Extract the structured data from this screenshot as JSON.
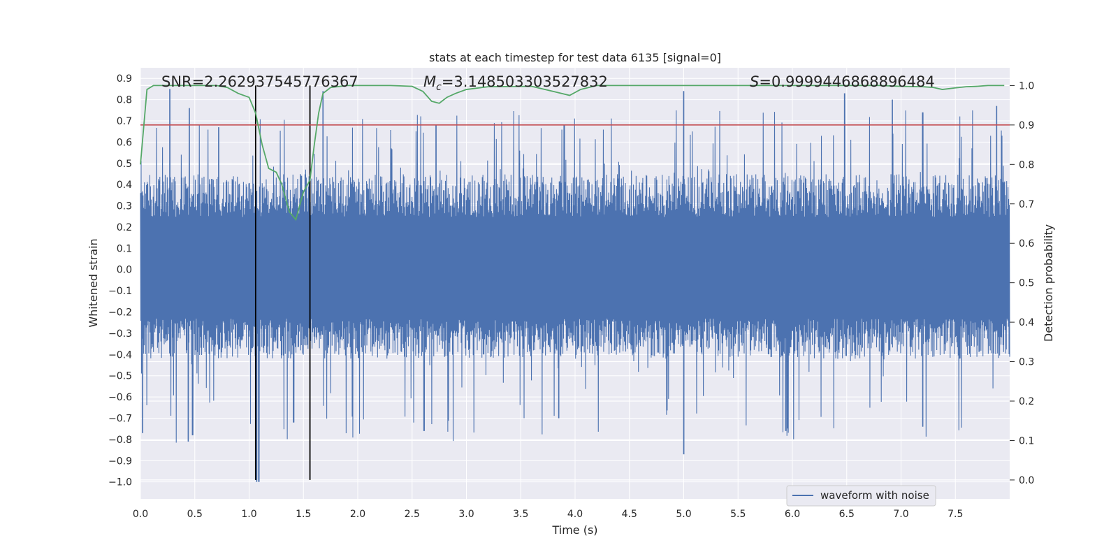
{
  "chart_data": {
    "type": "line",
    "title": "stats at each timestep for test data 6135 [signal=0]",
    "xlabel": "Time (s)",
    "ylabel_left": "Whitened strain",
    "ylabel_right": "Detection probability",
    "xlim": [
      0.0,
      8.0
    ],
    "ylim_left": [
      -1.08,
      0.95
    ],
    "ylim_right": [
      -0.048,
      1.045
    ],
    "x_ticks": [
      "0.0",
      "0.5",
      "1.0",
      "1.5",
      "2.0",
      "2.5",
      "3.0",
      "3.5",
      "4.0",
      "4.5",
      "5.0",
      "5.5",
      "6.0",
      "6.5",
      "7.0",
      "7.5"
    ],
    "y_left_ticks": [
      "0.9",
      "0.8",
      "0.7",
      "0.6",
      "0.5",
      "0.4",
      "0.3",
      "0.2",
      "0.1",
      "0.0",
      "−0.1",
      "−0.2",
      "−0.3",
      "−0.4",
      "−0.5",
      "−0.6",
      "−0.7",
      "−0.8",
      "−0.9",
      "−1.0"
    ],
    "y_right_ticks": [
      "0.0",
      "0.1",
      "0.2",
      "0.3",
      "0.4",
      "0.5",
      "0.6",
      "0.7",
      "0.8",
      "0.9",
      "1.0"
    ],
    "annotations": {
      "snr": "SNR=2.262937545776367",
      "mc_symbol": "M",
      "mc_sub": "c",
      "mc_value": "=3.148503303527832",
      "s_symbol": "S",
      "s_value": "=0.9999446868896484"
    },
    "threshold": {
      "axis": "right",
      "value": 0.9,
      "color": "#c44e52"
    },
    "vertical_lines": [
      1.06,
      1.56
    ],
    "legend": {
      "label": "waveform with noise",
      "placement": "lower-right"
    },
    "series": [
      {
        "name": "waveform with noise",
        "axis": "left",
        "color": "#4c72b0",
        "kind": "noise",
        "x_range": [
          0.0,
          8.0
        ],
        "typical_envelope": [
          -0.42,
          0.45
        ],
        "max": 0.85,
        "min": -1.0,
        "notable_peaks": [
          {
            "x": 0.27,
            "y": 0.85
          },
          {
            "x": 0.45,
            "y": 0.76
          },
          {
            "x": 0.72,
            "y": 0.67
          },
          {
            "x": 1.68,
            "y": 0.84
          },
          {
            "x": 2.72,
            "y": 0.68
          },
          {
            "x": 3.9,
            "y": 0.68
          },
          {
            "x": 5.0,
            "y": 0.84
          },
          {
            "x": 6.48,
            "y": 0.83
          },
          {
            "x": 6.92,
            "y": 0.8
          },
          {
            "x": 7.2,
            "y": 0.74
          },
          {
            "x": 7.88,
            "y": 0.77
          }
        ],
        "notable_troughs": [
          {
            "x": 0.02,
            "y": -0.77
          },
          {
            "x": 0.44,
            "y": -0.81
          },
          {
            "x": 0.48,
            "y": -0.78
          },
          {
            "x": 1.07,
            "y": -1.0
          },
          {
            "x": 1.09,
            "y": -1.0
          },
          {
            "x": 1.41,
            "y": -0.72
          },
          {
            "x": 2.61,
            "y": -0.76
          },
          {
            "x": 3.85,
            "y": -0.7
          },
          {
            "x": 5.0,
            "y": -0.87
          },
          {
            "x": 5.94,
            "y": -0.76
          },
          {
            "x": 7.2,
            "y": -0.74
          }
        ]
      },
      {
        "name": "Detection probability",
        "axis": "right",
        "color": "#55a868",
        "x": [
          0.0,
          0.06,
          0.12,
          0.3,
          0.5,
          0.7,
          0.8,
          0.9,
          1.0,
          1.06,
          1.12,
          1.18,
          1.25,
          1.3,
          1.37,
          1.43,
          1.5,
          1.56,
          1.6,
          1.64,
          1.68,
          1.75,
          1.9,
          2.3,
          2.5,
          2.6,
          2.68,
          2.75,
          2.82,
          2.9,
          3.0,
          3.2,
          3.6,
          3.8,
          3.95,
          4.05,
          4.2,
          4.5,
          5.0,
          6.0,
          6.8,
          7.0,
          7.2,
          7.3,
          7.38,
          7.5,
          7.6,
          7.7,
          7.8,
          7.95
        ],
        "y": [
          0.8,
          0.99,
          1.0,
          1.0,
          1.0,
          1.0,
          0.995,
          0.98,
          0.97,
          0.93,
          0.85,
          0.79,
          0.78,
          0.75,
          0.68,
          0.66,
          0.73,
          0.76,
          0.85,
          0.93,
          0.98,
          0.995,
          1.0,
          1.0,
          0.998,
          0.985,
          0.96,
          0.955,
          0.97,
          0.98,
          0.99,
          0.997,
          0.998,
          0.985,
          0.975,
          0.99,
          1.0,
          1.0,
          1.0,
          1.0,
          1.0,
          0.998,
          0.997,
          0.995,
          0.99,
          0.994,
          0.997,
          0.998,
          1.0,
          1.0
        ]
      }
    ]
  }
}
